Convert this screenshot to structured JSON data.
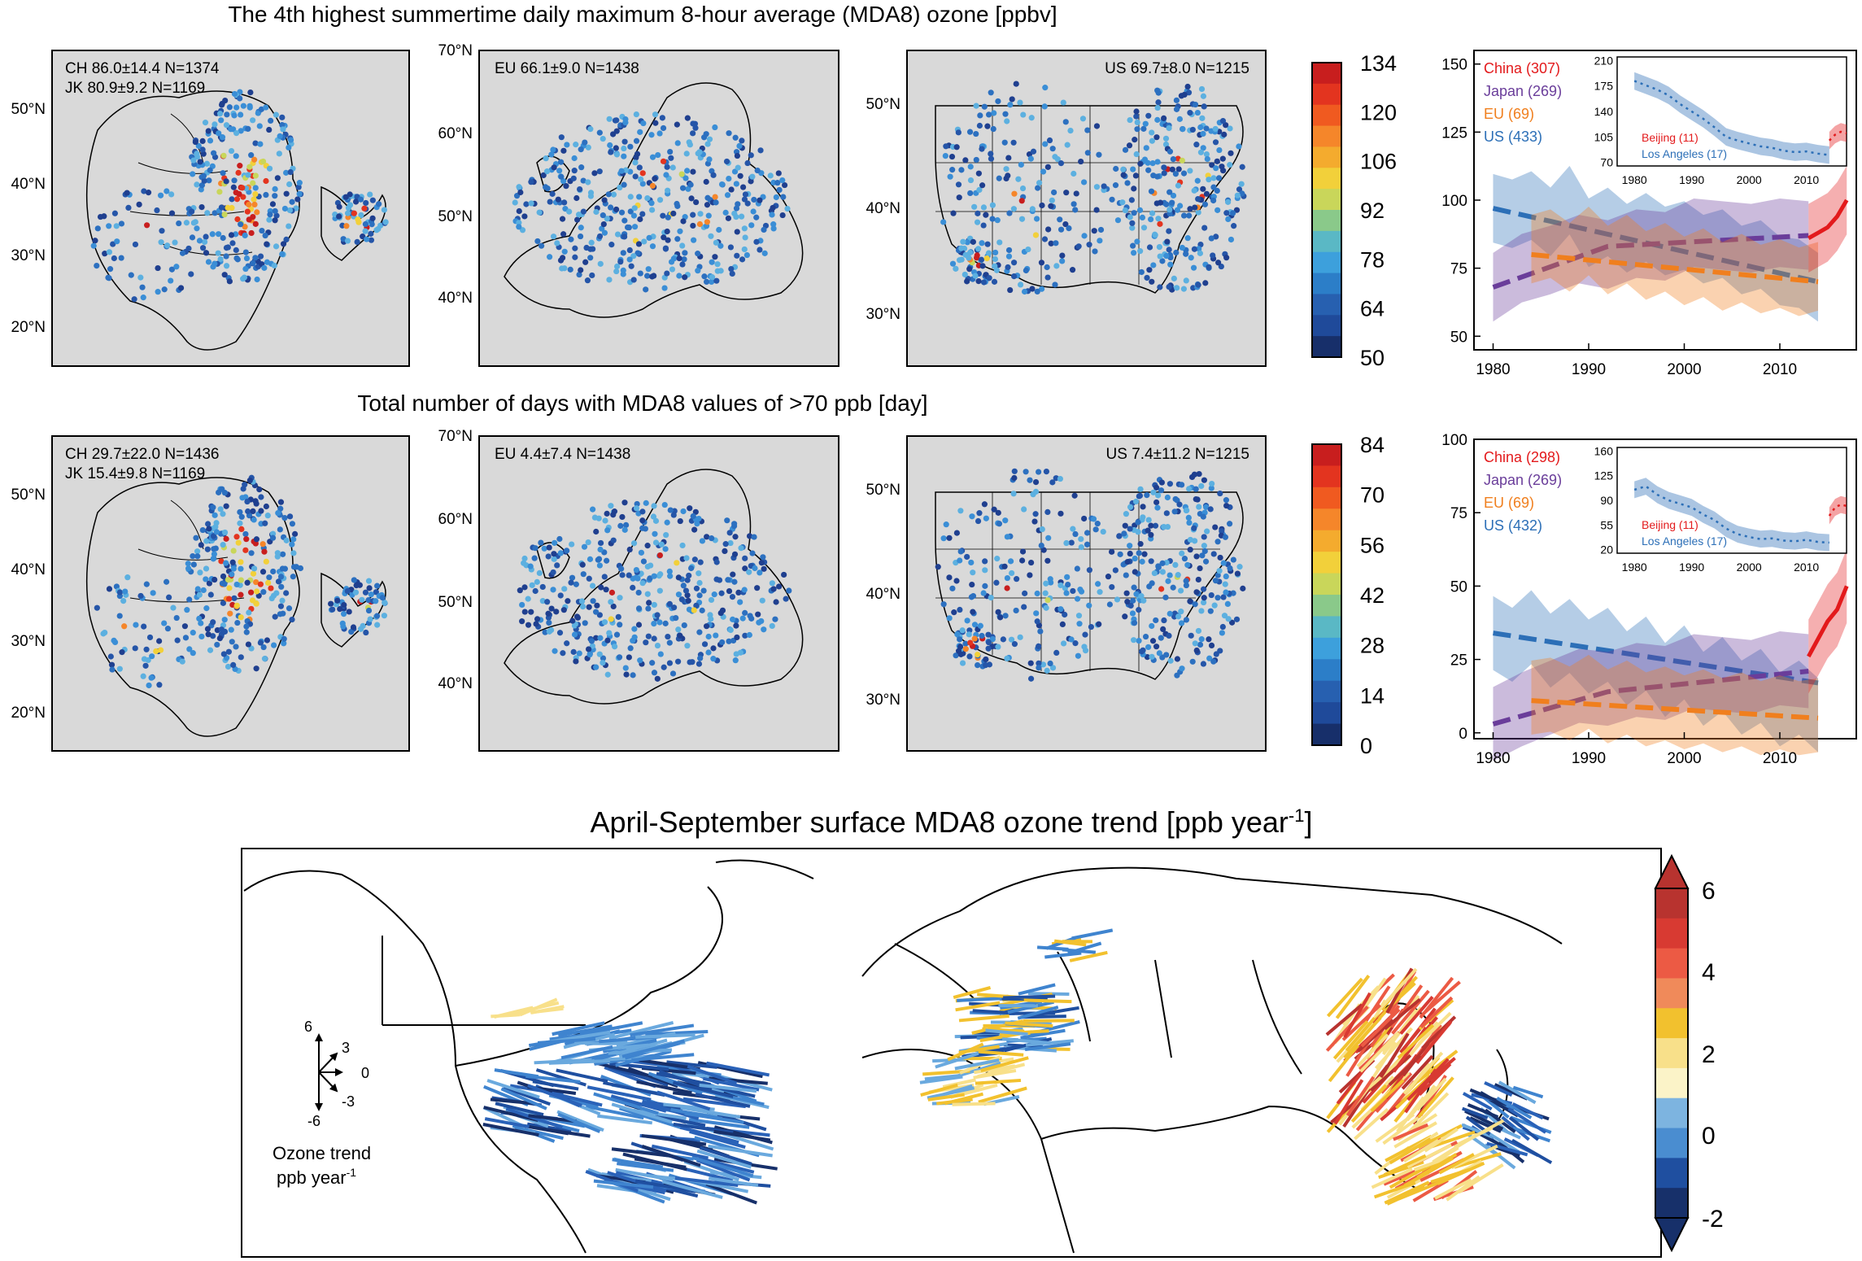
{
  "row1": {
    "title": "The 4th highest summertime daily maximum 8-hour average (MDA8) ozone [ppbv]",
    "maps": [
      {
        "stats": [
          "CH 86.0±14.4 N=1374",
          "JK 80.9±9.2 N=1169"
        ],
        "lat_labels": [
          "50°N",
          "40°N",
          "30°N",
          "20°N"
        ]
      },
      {
        "stats": [
          "EU 66.1±9.0 N=1438"
        ],
        "lat_labels": [
          "70°N",
          "60°N",
          "50°N",
          "40°N"
        ]
      },
      {
        "stats": [
          "US 69.7±8.0 N=1215"
        ],
        "lat_labels": [
          "50°N",
          "40°N",
          "30°N"
        ]
      }
    ],
    "colorbar": {
      "ticks": [
        "134",
        "120",
        "106",
        "92",
        "78",
        "64",
        "50"
      ],
      "colors": [
        "#c81e1e",
        "#e3341f",
        "#f05a20",
        "#f5862a",
        "#f4ab2e",
        "#f2d03a",
        "#c9d65a",
        "#8ac98a",
        "#5ab8c5",
        "#3da0dc",
        "#2c7ec8",
        "#2760b0",
        "#1f4a9a",
        "#172f6a"
      ]
    }
  },
  "row2": {
    "title": "Total number of days with MDA8 values of >70 ppb [day]",
    "maps": [
      {
        "stats": [
          "CH 29.7±22.0 N=1436",
          "JK 15.4±9.8 N=1169"
        ],
        "lat_labels": [
          "50°N",
          "40°N",
          "30°N",
          "20°N"
        ]
      },
      {
        "stats": [
          "EU 4.4±7.4 N=1438"
        ],
        "lat_labels": [
          "70°N",
          "60°N",
          "50°N",
          "40°N"
        ]
      },
      {
        "stats": [
          "US 7.4±11.2 N=1215"
        ],
        "lat_labels": [
          "50°N",
          "40°N",
          "30°N"
        ]
      }
    ],
    "colorbar": {
      "ticks": [
        "84",
        "70",
        "56",
        "42",
        "28",
        "14",
        "0"
      ],
      "colors": [
        "#c81e1e",
        "#e3341f",
        "#f05a20",
        "#f5862a",
        "#f4ab2e",
        "#f2d03a",
        "#c9d65a",
        "#8ac98a",
        "#5ab8c5",
        "#3da0dc",
        "#2c7ec8",
        "#2760b0",
        "#1f4a9a",
        "#172f6a"
      ]
    }
  },
  "bottom": {
    "title": "April-September surface MDA8 ozone trend [ppb year",
    "title_sup": "-1",
    "title_end": "]",
    "legend_numbers": [
      "6",
      "3",
      "0",
      "-3",
      "-6"
    ],
    "legend_label_1": "Ozone trend",
    "legend_label_2": "ppb year",
    "legend_label_sup": "-1",
    "colorbar": {
      "ticks": [
        "6",
        "4",
        "2",
        "0",
        "-2"
      ],
      "colors": [
        "#b8332f",
        "#d83a32",
        "#ec5a44",
        "#f08a5a",
        "#f2c12e",
        "#f8e08a",
        "#fbf3c8",
        "#7db4e0",
        "#4a8dd0",
        "#1f4fa0",
        "#17306a"
      ]
    }
  },
  "chart_data": [
    {
      "type": "line",
      "panel": "top",
      "xlim": [
        1978,
        2018
      ],
      "ylim": [
        45,
        155
      ],
      "xticks": [
        "1980",
        "1990",
        "2000",
        "2010"
      ],
      "yticks": [
        "50",
        "75",
        "100",
        "125",
        "150"
      ],
      "legend": [
        "China (307)",
        "Japan (269)",
        "EU (69)",
        "US (433)"
      ],
      "series": [
        {
          "name": "US (433)",
          "color": "#2c6fb7",
          "x": [
            1980,
            1982,
            1984,
            1986,
            1988,
            1990,
            1992,
            1994,
            1996,
            1998,
            2000,
            2002,
            2004,
            2006,
            2008,
            2010,
            2012,
            2014
          ],
          "values": [
            97,
            95,
            98,
            92,
            100,
            88,
            92,
            86,
            90,
            85,
            87,
            82,
            84,
            78,
            80,
            74,
            73,
            68
          ],
          "trend": [
            [
              1980,
              97
            ],
            [
              2014,
              70
            ]
          ]
        },
        {
          "name": "Japan (269)",
          "color": "#6a3d9a",
          "x": [
            1980,
            1983,
            1986,
            1989,
            1992,
            1995,
            1998,
            2001,
            2004,
            2007,
            2010,
            2013
          ],
          "values": [
            68,
            75,
            78,
            82,
            80,
            84,
            83,
            88,
            87,
            86,
            88,
            87
          ],
          "trend": [
            [
              1980,
              68
            ],
            [
              1992,
              83
            ],
            [
              2013,
              87
            ]
          ]
        },
        {
          "name": "EU (69)",
          "color": "#f07f1e",
          "x": [
            1984,
            1986,
            1988,
            1990,
            1992,
            1994,
            1996,
            1998,
            2000,
            2002,
            2004,
            2006,
            2008,
            2010,
            2012,
            2014
          ],
          "values": [
            82,
            84,
            79,
            85,
            78,
            82,
            76,
            79,
            74,
            77,
            72,
            75,
            71,
            73,
            70,
            72
          ],
          "trend": [
            [
              1984,
              80
            ],
            [
              2014,
              70
            ]
          ]
        },
        {
          "name": "China (307)",
          "color": "#e31a1c",
          "x": [
            2013,
            2014,
            2015,
            2016,
            2017
          ],
          "values": [
            86,
            88,
            90,
            94,
            100
          ]
        }
      ],
      "inset": {
        "xlim": [
          1977,
          2017
        ],
        "ylim": [
          65,
          215
        ],
        "xticks": [
          "1980",
          "1990",
          "2000",
          "2010"
        ],
        "yticks": [
          "70",
          "105",
          "140",
          "175",
          "210"
        ],
        "legend": [
          "Beijing (11)",
          "Los Angeles (17)"
        ],
        "series": [
          {
            "name": "Los Angeles (17)",
            "color": "#2c6fb7",
            "x": [
              1980,
              1982,
              1984,
              1986,
              1988,
              1990,
              1992,
              1994,
              1996,
              1998,
              2000,
              2002,
              2004,
              2006,
              2008,
              2010,
              2012,
              2014
            ],
            "values": [
              182,
              176,
              170,
              162,
              150,
              140,
              130,
              118,
              105,
              100,
              96,
              92,
              90,
              86,
              84,
              85,
              82,
              80
            ]
          },
          {
            "name": "Beijing (11)",
            "color": "#e31a1c",
            "x": [
              2014,
              2015,
              2016,
              2017
            ],
            "values": [
              100,
              108,
              112,
              110
            ]
          }
        ]
      }
    },
    {
      "type": "line",
      "panel": "bottom",
      "xlim": [
        1978,
        2018
      ],
      "ylim": [
        -2,
        100
      ],
      "xticks": [
        "1980",
        "1990",
        "2000",
        "2010"
      ],
      "yticks": [
        "0",
        "25",
        "50",
        "75",
        "100"
      ],
      "legend": [
        "China (298)",
        "Japan (269)",
        "EU (69)",
        "US (432)"
      ],
      "series": [
        {
          "name": "US (432)",
          "color": "#2c6fb7",
          "x": [
            1980,
            1982,
            1984,
            1986,
            1988,
            1990,
            1992,
            1994,
            1996,
            1998,
            2000,
            2002,
            2004,
            2006,
            2008,
            2010,
            2012,
            2014
          ],
          "values": [
            34,
            30,
            36,
            28,
            33,
            26,
            30,
            22,
            27,
            18,
            24,
            15,
            20,
            12,
            16,
            8,
            12,
            6
          ],
          "trend": [
            [
              1980,
              34
            ],
            [
              2014,
              17
            ]
          ]
        },
        {
          "name": "Japan (269)",
          "color": "#6a3d9a",
          "x": [
            1980,
            1983,
            1986,
            1989,
            1992,
            1995,
            1998,
            2001,
            2004,
            2007,
            2010,
            2013
          ],
          "values": [
            3,
            8,
            12,
            16,
            15,
            18,
            17,
            21,
            20,
            19,
            22,
            21
          ],
          "trend": [
            [
              1980,
              3
            ],
            [
              1992,
              14
            ],
            [
              2013,
              21
            ]
          ]
        },
        {
          "name": "EU (69)",
          "color": "#f07f1e",
          "x": [
            1984,
            1986,
            1988,
            1990,
            1992,
            1994,
            1996,
            1998,
            2000,
            2002,
            2004,
            2006,
            2008,
            2010,
            2012,
            2014
          ],
          "values": [
            12,
            13,
            10,
            14,
            9,
            12,
            8,
            10,
            7,
            9,
            6,
            8,
            5,
            7,
            5,
            6
          ],
          "trend": [
            [
              1984,
              11
            ],
            [
              2014,
              5
            ]
          ]
        },
        {
          "name": "China (298)",
          "color": "#e31a1c",
          "x": [
            2013,
            2014,
            2015,
            2016,
            2017
          ],
          "values": [
            26,
            32,
            38,
            42,
            50
          ]
        }
      ],
      "inset": {
        "xlim": [
          1977,
          2017
        ],
        "ylim": [
          15,
          165
        ],
        "xticks": [
          "1980",
          "1990",
          "2000",
          "2010"
        ],
        "yticks": [
          "20",
          "55",
          "90",
          "125",
          "160"
        ],
        "legend": [
          "Beijing (11)",
          "Los Angeles (17)"
        ],
        "series": [
          {
            "name": "Los Angeles (17)",
            "color": "#2c6fb7",
            "x": [
              1980,
              1982,
              1984,
              1986,
              1988,
              1990,
              1992,
              1994,
              1996,
              1998,
              2000,
              2002,
              2004,
              2006,
              2008,
              2010,
              2012,
              2014
            ],
            "values": [
              105,
              110,
              98,
              90,
              85,
              80,
              70,
              62,
              50,
              42,
              38,
              35,
              36,
              33,
              32,
              34,
              31,
              30
            ]
          },
          {
            "name": "Beijing (11)",
            "color": "#e31a1c",
            "x": [
              2014,
              2015,
              2016,
              2017
            ],
            "values": [
              68,
              80,
              84,
              82
            ]
          }
        ]
      }
    }
  ]
}
